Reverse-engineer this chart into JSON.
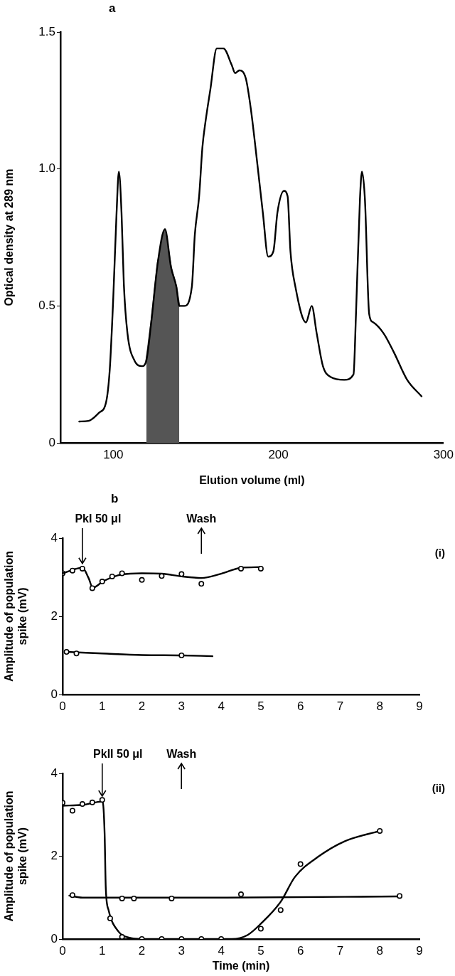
{
  "chart_data": [
    {
      "type": "line",
      "title": "a",
      "xlabel": "Elution volume (ml)",
      "ylabel": "Optical density at 289 nm",
      "xlim": [
        68,
        300
      ],
      "xticks": [
        100,
        200,
        300
      ],
      "ylim": [
        0,
        1.5
      ],
      "yticks": [
        0,
        0.5,
        {
          "value": 1,
          "label": "1.0"
        },
        1.5
      ],
      "grid": false,
      "legend": false,
      "marker": "none",
      "series": [
        {
          "color": "#000000",
          "x": [
            79.4,
            84.9,
            91.4,
            95.7,
            97.9,
            100,
            102,
            103.4,
            105,
            106.4,
            108.6,
            112.9,
            117.5,
            120,
            123,
            127,
            131.3,
            135,
            138.2,
            140,
            143,
            147.6,
            149.4,
            152,
            154,
            155.8,
            158.8,
            162.7,
            166.7,
            171.7,
            173.8,
            176.4,
            180.3,
            183.3,
            187.6,
            190.6,
            193.8,
            197,
            199.4,
            203.4,
            205.6,
            207.3,
            210.3,
            216.7,
            220.2,
            223.2,
            227,
            231.8,
            239.9,
            245.5,
            247,
            249.4,
            250.6,
            252.4,
            255,
            257.5,
            263.7,
            270,
            278,
            286.7
          ],
          "values": [
            0.078,
            0.08,
            0.11,
            0.15,
            0.27,
            0.53,
            0.84,
            0.99,
            0.84,
            0.58,
            0.4,
            0.3,
            0.28,
            0.3,
            0.44,
            0.66,
            0.78,
            0.64,
            0.57,
            0.5,
            0.5,
            0.57,
            0.76,
            0.9,
            1.08,
            1.17,
            1.29,
            1.44,
            1.44,
            1.38,
            1.35,
            1.36,
            1.33,
            1.22,
            1.0,
            0.84,
            0.68,
            0.7,
            0.84,
            0.92,
            0.9,
            0.7,
            0.57,
            0.44,
            0.5,
            0.4,
            0.28,
            0.24,
            0.23,
            0.25,
            0.47,
            0.89,
            0.99,
            0.89,
            0.47,
            0.44,
            0.4,
            0.33,
            0.23,
            0.17
          ]
        },
        {
          "type": "area",
          "color": "#555555",
          "x": [
            120,
            123,
            127,
            131.3,
            135,
            138.2,
            140
          ],
          "values": [
            0.3,
            0.44,
            0.66,
            0.78,
            0.64,
            0.57,
            0.5
          ]
        }
      ]
    },
    {
      "type": "scatter",
      "title": "b",
      "ylabel": "Amplitude of population spike (mV)",
      "xlim": [
        0,
        9
      ],
      "xticks": [
        0,
        1,
        2,
        3,
        4,
        5,
        6,
        7,
        8,
        9
      ],
      "ylim": [
        0,
        4
      ],
      "yticks": [
        0,
        2,
        4
      ],
      "grid": false,
      "legend": false,
      "marker": "circle",
      "annotations": [
        {
          "text": "PkI 50 μl",
          "x": 0.5,
          "y": 3.35
        },
        "Wash",
        "(i)"
      ],
      "series": [
        {
          "color": "#000000",
          "x": [
            0.25,
            0.5,
            0.75,
            1,
            1.25,
            1.5,
            2,
            2.5,
            3,
            3.5,
            4.5,
            5
          ],
          "values": [
            3.17,
            3.22,
            2.72,
            2.89,
            3.02,
            3.1,
            2.93,
            3.03,
            3.08,
            2.83,
            3.22,
            3.22
          ]
        },
        {
          "type": "line",
          "marker": "none",
          "color": "#000000",
          "x": [
            0,
            0.5,
            0.66,
            0.76,
            1.03,
            1.5,
            2,
            2.5,
            3,
            3.5,
            4,
            4.5,
            5
          ],
          "values": [
            3.1,
            3.24,
            2.97,
            2.73,
            2.9,
            3.07,
            3.1,
            3.09,
            3.02,
            2.98,
            3.09,
            3.24,
            3.26
          ]
        },
        {
          "color": "#000000",
          "x": [
            0,
            0.1,
            0.35,
            3
          ],
          "values": [
            3.1,
            1.09,
            1.05,
            1.0
          ]
        },
        {
          "type": "line",
          "marker": "none",
          "color": "#000000",
          "x": [
            0.1,
            1,
            2,
            3,
            3.78
          ],
          "values": [
            1.09,
            1.05,
            1.01,
            1.0,
            0.98
          ]
        }
      ]
    },
    {
      "type": "scatter",
      "xlabel": "Time (min)",
      "ylabel": "Amplitude of population spike (mV)",
      "xlim": [
        0,
        9
      ],
      "xticks": [
        0,
        1,
        2,
        3,
        4,
        5,
        6,
        7,
        8,
        9
      ],
      "ylim": [
        0,
        4
      ],
      "yticks": [
        0,
        2,
        4
      ],
      "grid": false,
      "legend": false,
      "marker": "circle",
      "annotations": [
        {
          "text": "PkII 50 μl",
          "x": 1,
          "y": 3.45
        },
        "Wash",
        "(ii)"
      ],
      "series": [
        {
          "color": "#000000",
          "x": [
            0.25,
            0.5,
            0.75,
            1,
            1.2,
            1.5,
            2,
            2.5,
            3,
            3.5,
            4,
            5,
            5.5,
            6,
            8
          ],
          "values": [
            3.1,
            3.26,
            3.3,
            3.36,
            0.5,
            0.05,
            0,
            0,
            0,
            0,
            0,
            0.25,
            0.7,
            1.81,
            2.61
          ]
        },
        {
          "type": "line",
          "marker": "none",
          "color": "#000000",
          "x": [
            0,
            0.5,
            1.01,
            1.06,
            1.09,
            1.16,
            1.42,
            1.69,
            2,
            4.27,
            4.67,
            5,
            5.5,
            5.86,
            6.45,
            7.11,
            8
          ],
          "values": [
            3.22,
            3.24,
            3.32,
            2.56,
            1.23,
            0.7,
            0.17,
            0.03,
            0,
            0,
            0.1,
            0.37,
            0.9,
            1.5,
            1.99,
            2.36,
            2.61
          ]
        },
        {
          "color": "#000000",
          "x": [
            0,
            0.25,
            1.5,
            1.8,
            2.75,
            4.5,
            8.5
          ],
          "values": [
            3.29,
            1.06,
            0.98,
            0.98,
            0.98,
            1.08,
            1.04
          ]
        },
        {
          "type": "line",
          "marker": "none",
          "color": "#000000",
          "x": [
            0.17,
            0.5,
            4,
            8.5
          ],
          "values": [
            1.05,
            1.0,
            1.0,
            1.03
          ]
        }
      ]
    }
  ]
}
